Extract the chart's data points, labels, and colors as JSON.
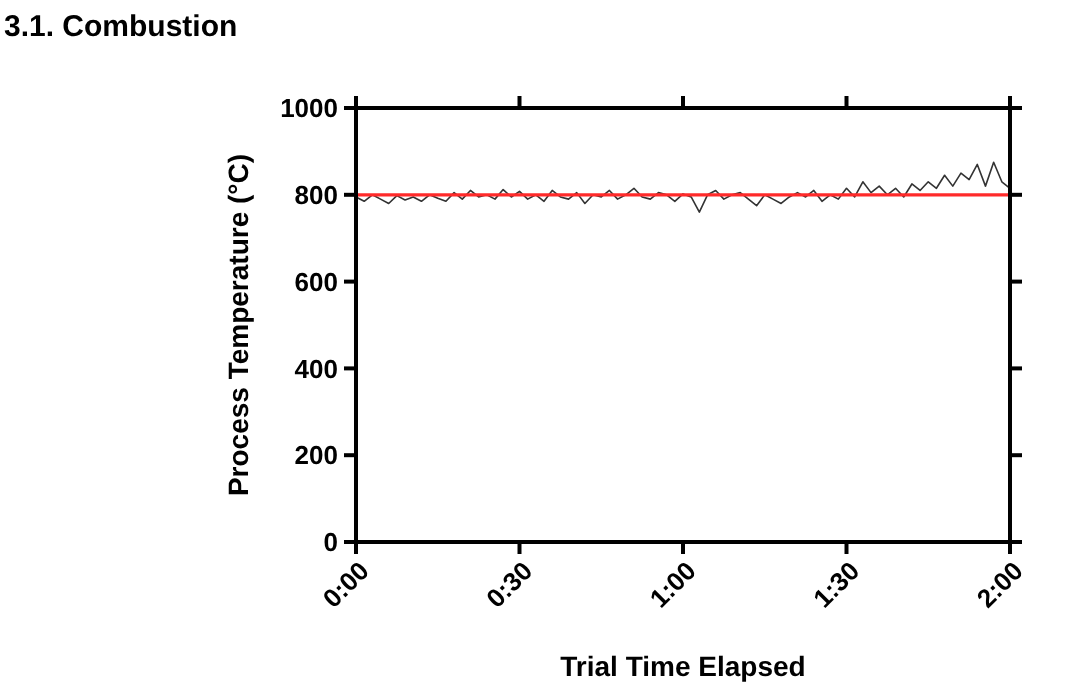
{
  "chart_data": {
    "type": "line",
    "title": "3.1. Combustion",
    "xlabel": "Trial Time Elapsed",
    "ylabel": "Process Temperature (°C)",
    "xlim": [
      0,
      2
    ],
    "xticks": [
      {
        "value": 0,
        "label": "0:00"
      },
      {
        "value": 0.5,
        "label": "0:30"
      },
      {
        "value": 1,
        "label": "1:00"
      },
      {
        "value": 1.5,
        "label": "1:30"
      },
      {
        "value": 2,
        "label": "2:00"
      }
    ],
    "ylim": [
      0,
      1000
    ],
    "yticks": [
      0,
      200,
      400,
      600,
      800,
      1000
    ],
    "grid": false,
    "series": [
      {
        "color": "#333333",
        "x": [
          0,
          0.025,
          0.05,
          0.075,
          0.1,
          0.125,
          0.15,
          0.175,
          0.2,
          0.225,
          0.25,
          0.275,
          0.3,
          0.325,
          0.35,
          0.375,
          0.4,
          0.425,
          0.45,
          0.475,
          0.5,
          0.525,
          0.55,
          0.575,
          0.6,
          0.625,
          0.65,
          0.675,
          0.7,
          0.725,
          0.75,
          0.775,
          0.8,
          0.825,
          0.85,
          0.875,
          0.9,
          0.925,
          0.95,
          0.975,
          1,
          1.025,
          1.05,
          1.075,
          1.1,
          1.125,
          1.15,
          1.175,
          1.2,
          1.225,
          1.25,
          1.275,
          1.3,
          1.325,
          1.35,
          1.375,
          1.4,
          1.425,
          1.45,
          1.475,
          1.5,
          1.525,
          1.55,
          1.575,
          1.6,
          1.625,
          1.65,
          1.675,
          1.7,
          1.725,
          1.75,
          1.775,
          1.8,
          1.825,
          1.85,
          1.875,
          1.9,
          1.925,
          1.95,
          1.975,
          2
        ],
        "values": [
          795,
          785,
          800,
          790,
          780,
          798,
          788,
          795,
          785,
          800,
          792,
          785,
          805,
          790,
          810,
          795,
          800,
          790,
          812,
          795,
          808,
          790,
          800,
          785,
          810,
          795,
          790,
          805,
          780,
          800,
          795,
          810,
          790,
          800,
          815,
          795,
          790,
          805,
          800,
          785,
          802,
          795,
          760,
          800,
          810,
          790,
          800,
          805,
          790,
          775,
          800,
          790,
          780,
          795,
          805,
          795,
          810,
          785,
          800,
          790,
          815,
          795,
          830,
          805,
          820,
          800,
          815,
          795,
          825,
          810,
          830,
          815,
          845,
          820,
          850,
          835,
          870,
          820,
          875,
          830,
          815
        ]
      }
    ],
    "ref_lines": [
      {
        "axis": "y",
        "value": 800,
        "color": "#ff2a2a"
      }
    ]
  }
}
